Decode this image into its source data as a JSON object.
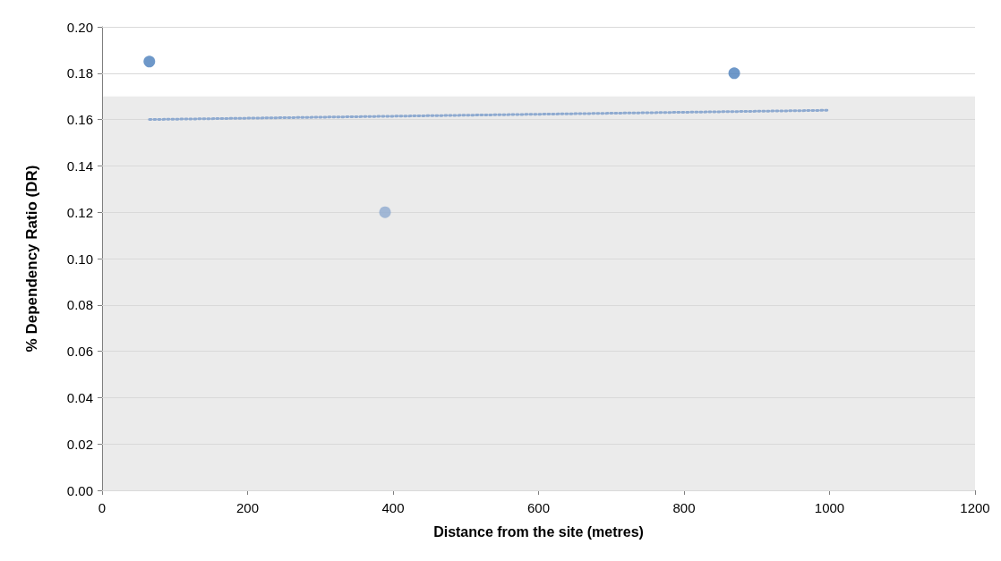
{
  "chart_data": {
    "type": "scatter",
    "xlabel": "Distance from the site (metres)",
    "ylabel": "% Dependency Ratio (DR)",
    "xlim": [
      0,
      1200
    ],
    "xticks": [
      0,
      200,
      400,
      600,
      800,
      1000,
      1200
    ],
    "ylim": [
      0,
      0.2
    ],
    "yticks": [
      {
        "value": 0,
        "label": "0.00"
      },
      {
        "value": 0.02,
        "label": "0.02"
      },
      {
        "value": 0.04,
        "label": "0.04"
      },
      {
        "value": 0.06,
        "label": "0.06"
      },
      {
        "value": 0.08,
        "label": "0.08"
      },
      {
        "value": 0.1,
        "label": "0.10"
      },
      {
        "value": 0.12,
        "label": "0.12"
      },
      {
        "value": 0.14,
        "label": "0.14"
      },
      {
        "value": 0.16,
        "label": "0.16"
      },
      {
        "value": 0.18,
        "label": "0.18"
      },
      {
        "value": 0.2,
        "label": "0.20"
      }
    ],
    "grid": "y",
    "marker": "circle",
    "bands": [
      {
        "axis": "y",
        "from": 0,
        "to": 0.17,
        "color": "#ebebeb"
      }
    ],
    "series": [
      {
        "x": [
          65,
          389,
          869
        ],
        "values": [
          0.185,
          0.12,
          0.18
        ],
        "colors": [
          "#4a7ebb",
          "#8eaad0",
          "#4a7ebb"
        ]
      },
      {
        "type": "line",
        "x": [
          65,
          1000
        ],
        "values": [
          0.16,
          0.164
        ],
        "color": "#8eaad0",
        "line_style": "dotted",
        "marker": "none"
      }
    ]
  }
}
